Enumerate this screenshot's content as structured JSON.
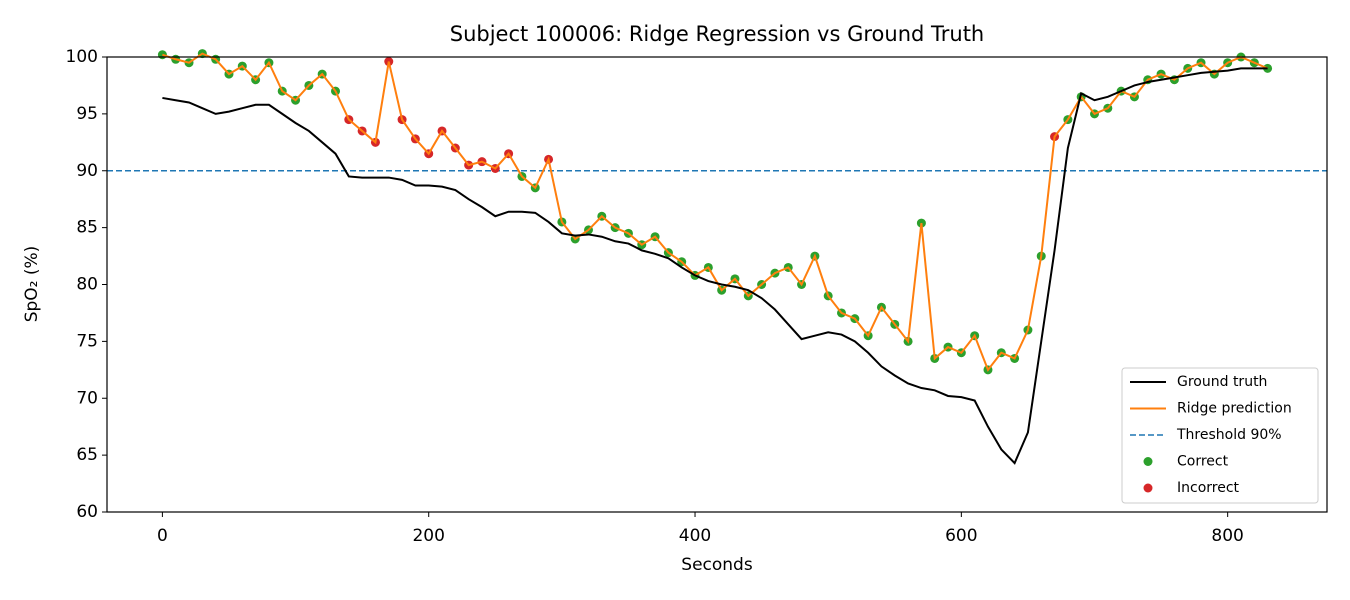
{
  "chart_data": {
    "type": "line",
    "title": "Subject 100006: Ridge Regression vs Ground Truth",
    "x_label": "Seconds",
    "y_label": "SpO₂ (%)",
    "xlim": [
      -41.6,
      874.6
    ],
    "xticks": [
      0,
      200,
      400,
      600,
      800
    ],
    "ylim": [
      60,
      100
    ],
    "yticks": [
      60,
      65,
      70,
      75,
      80,
      85,
      90,
      95,
      100
    ],
    "legend": "lower right",
    "x": [
      0,
      10,
      20,
      30,
      40,
      50,
      60,
      70,
      80,
      90,
      100,
      110,
      120,
      130,
      140,
      150,
      160,
      170,
      180,
      190,
      200,
      210,
      220,
      230,
      240,
      250,
      260,
      270,
      280,
      290,
      300,
      310,
      320,
      330,
      340,
      350,
      360,
      370,
      380,
      390,
      400,
      410,
      420,
      430,
      440,
      450,
      460,
      470,
      480,
      490,
      500,
      510,
      520,
      530,
      540,
      550,
      560,
      570,
      580,
      590,
      600,
      610,
      620,
      630,
      640,
      650,
      660,
      670,
      680,
      690,
      700,
      710,
      720,
      730,
      740,
      750,
      760,
      770,
      780,
      790,
      800,
      810,
      820,
      830
    ],
    "series": [
      {
        "name": "Ground truth",
        "type": "line",
        "color": "#000000",
        "values": [
          96.4,
          96.2,
          96.0,
          95.5,
          95.0,
          95.2,
          95.5,
          95.8,
          95.8,
          95.0,
          94.2,
          93.5,
          92.5,
          91.5,
          89.5,
          89.4,
          89.4,
          89.4,
          89.2,
          88.7,
          88.7,
          88.6,
          88.3,
          87.5,
          86.8,
          86.0,
          86.4,
          86.4,
          86.3,
          85.5,
          84.5,
          84.3,
          84.4,
          84.2,
          83.8,
          83.6,
          83.0,
          82.7,
          82.3,
          81.5,
          80.8,
          80.3,
          80.0,
          79.8,
          79.5,
          78.8,
          77.8,
          76.5,
          75.2,
          75.5,
          75.8,
          75.6,
          75.0,
          74.0,
          72.8,
          72.0,
          71.3,
          70.9,
          70.7,
          70.2,
          70.1,
          69.8,
          67.5,
          65.5,
          64.3,
          67,
          75,
          83,
          92,
          96.8,
          96.2,
          96.5,
          97.0,
          97.5,
          97.8,
          98.0,
          98.2,
          98.4,
          98.6,
          98.7,
          98.8,
          99.0,
          99.0,
          99.0
        ]
      },
      {
        "name": "Ridge prediction",
        "type": "line",
        "color": "#ff7f0e",
        "values": [
          100.2,
          99.8,
          99.5,
          100.3,
          99.8,
          98.5,
          99.2,
          98.0,
          99.5,
          97.0,
          96.2,
          97.5,
          98.5,
          97.0,
          94.5,
          93.5,
          92.5,
          99.6,
          94.5,
          92.8,
          91.5,
          93.5,
          92.0,
          90.5,
          90.8,
          90.2,
          91.5,
          89.5,
          88.5,
          91.0,
          85.5,
          84.0,
          84.8,
          86.0,
          85.0,
          84.5,
          83.5,
          84.2,
          82.8,
          82.0,
          80.8,
          81.5,
          79.5,
          80.5,
          79.0,
          80.0,
          81.0,
          81.5,
          80.0,
          82.5,
          79.0,
          77.5,
          77.0,
          75.5,
          78.0,
          76.5,
          75.0,
          85.4,
          73.5,
          74.5,
          74.0,
          75.5,
          72.5,
          74.0,
          73.5,
          76.0,
          82.5,
          93.0,
          94.5,
          96.5,
          95.0,
          95.5,
          97.0,
          96.5,
          98.0,
          98.5,
          98.0,
          99.0,
          99.5,
          98.5,
          99.5,
          100.0,
          99.5,
          99.0
        ]
      },
      {
        "name": "Threshold 90%",
        "type": "hline",
        "color": "#1f77b4",
        "value": 90
      },
      {
        "name": "Correct",
        "type": "scatter",
        "color": "#2ca02c",
        "x": [
          0,
          10,
          20,
          30,
          40,
          50,
          60,
          70,
          80,
          90,
          100,
          110,
          120,
          130,
          270,
          280,
          300,
          310,
          320,
          330,
          340,
          350,
          360,
          370,
          380,
          390,
          400,
          410,
          420,
          430,
          440,
          450,
          460,
          470,
          480,
          490,
          500,
          510,
          520,
          530,
          540,
          550,
          560,
          570,
          580,
          590,
          600,
          610,
          620,
          630,
          640,
          650,
          660,
          680,
          690,
          700,
          710,
          720,
          730,
          740,
          750,
          760,
          770,
          780,
          790,
          800,
          810,
          820,
          830
        ],
        "values": [
          100.2,
          99.8,
          99.5,
          100.3,
          99.8,
          98.5,
          99.2,
          98.0,
          99.5,
          97.0,
          96.2,
          97.5,
          98.5,
          97.0,
          89.5,
          88.5,
          85.5,
          84.0,
          84.8,
          86.0,
          85.0,
          84.5,
          83.5,
          84.2,
          82.8,
          82.0,
          80.8,
          81.5,
          79.5,
          80.5,
          79.0,
          80.0,
          81.0,
          81.5,
          80.0,
          82.5,
          79.0,
          77.5,
          77.0,
          75.5,
          78.0,
          76.5,
          75.0,
          85.4,
          73.5,
          74.5,
          74.0,
          75.5,
          72.5,
          74.0,
          73.5,
          76.0,
          82.5,
          94.5,
          96.5,
          95.0,
          95.5,
          97.0,
          96.5,
          98.0,
          98.5,
          98.0,
          99.0,
          99.5,
          98.5,
          99.5,
          100.0,
          99.5,
          99.0
        ]
      },
      {
        "name": "Incorrect",
        "type": "scatter",
        "color": "#d62728",
        "x": [
          140,
          150,
          160,
          170,
          180,
          190,
          200,
          210,
          220,
          230,
          240,
          250,
          260,
          290,
          670
        ],
        "values": [
          94.5,
          93.5,
          92.5,
          99.6,
          94.5,
          92.8,
          91.5,
          93.5,
          92.0,
          90.5,
          90.8,
          90.2,
          91.5,
          91.0,
          93.0
        ]
      }
    ]
  }
}
